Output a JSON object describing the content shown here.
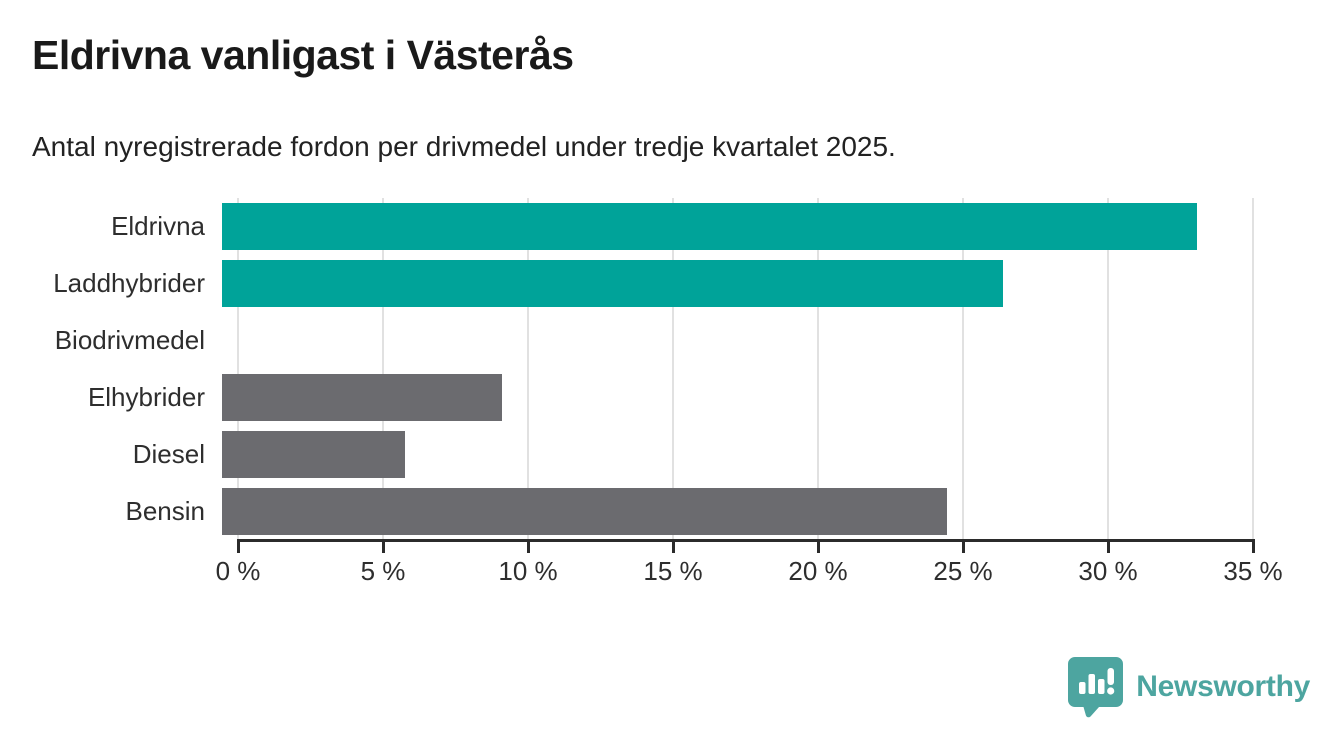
{
  "header": {
    "title": "Eldrivna vanligast i Västerås",
    "subtitle": "Antal nyregistrerade fordon per drivmedel under tredje kvartalet 2025."
  },
  "chart_data": {
    "type": "bar",
    "orientation": "horizontal",
    "title": "Eldrivna vanligast i Västerås",
    "subtitle": "Antal nyregistrerade fordon per drivmedel under tredje kvartalet 2025.",
    "categories": [
      "Eldrivna",
      "Laddhybrider",
      "Biodrivmedel",
      "Elhybrider",
      "Diesel",
      "Bensin"
    ],
    "values": [
      33.1,
      26.5,
      0,
      9.5,
      6.2,
      24.6
    ],
    "unit": "%",
    "bar_colors": [
      "#00a399",
      "#00a399",
      "#6b6b6f",
      "#6b6b6f",
      "#6b6b6f",
      "#6b6b6f"
    ],
    "xlabel": "",
    "ylabel": "",
    "xlim": [
      0,
      35
    ],
    "xticks": [
      0,
      5,
      10,
      15,
      20,
      25,
      30,
      35
    ],
    "xtick_labels": [
      "0 %",
      "5 %",
      "10 %",
      "15 %",
      "20 %",
      "25 %",
      "30 %",
      "35 %"
    ],
    "grid": "vertical-gridlines",
    "legend": "none",
    "accent_color": "#00a399",
    "neutral_color": "#6b6b6f",
    "gridline_color": "#e1e1e1",
    "axis_color": "#2b2b2b"
  },
  "footer": {
    "brand": "Newsworthy",
    "brand_color": "#4da5a0",
    "logo_icon": "bar-chart-speech-bubble-icon"
  }
}
